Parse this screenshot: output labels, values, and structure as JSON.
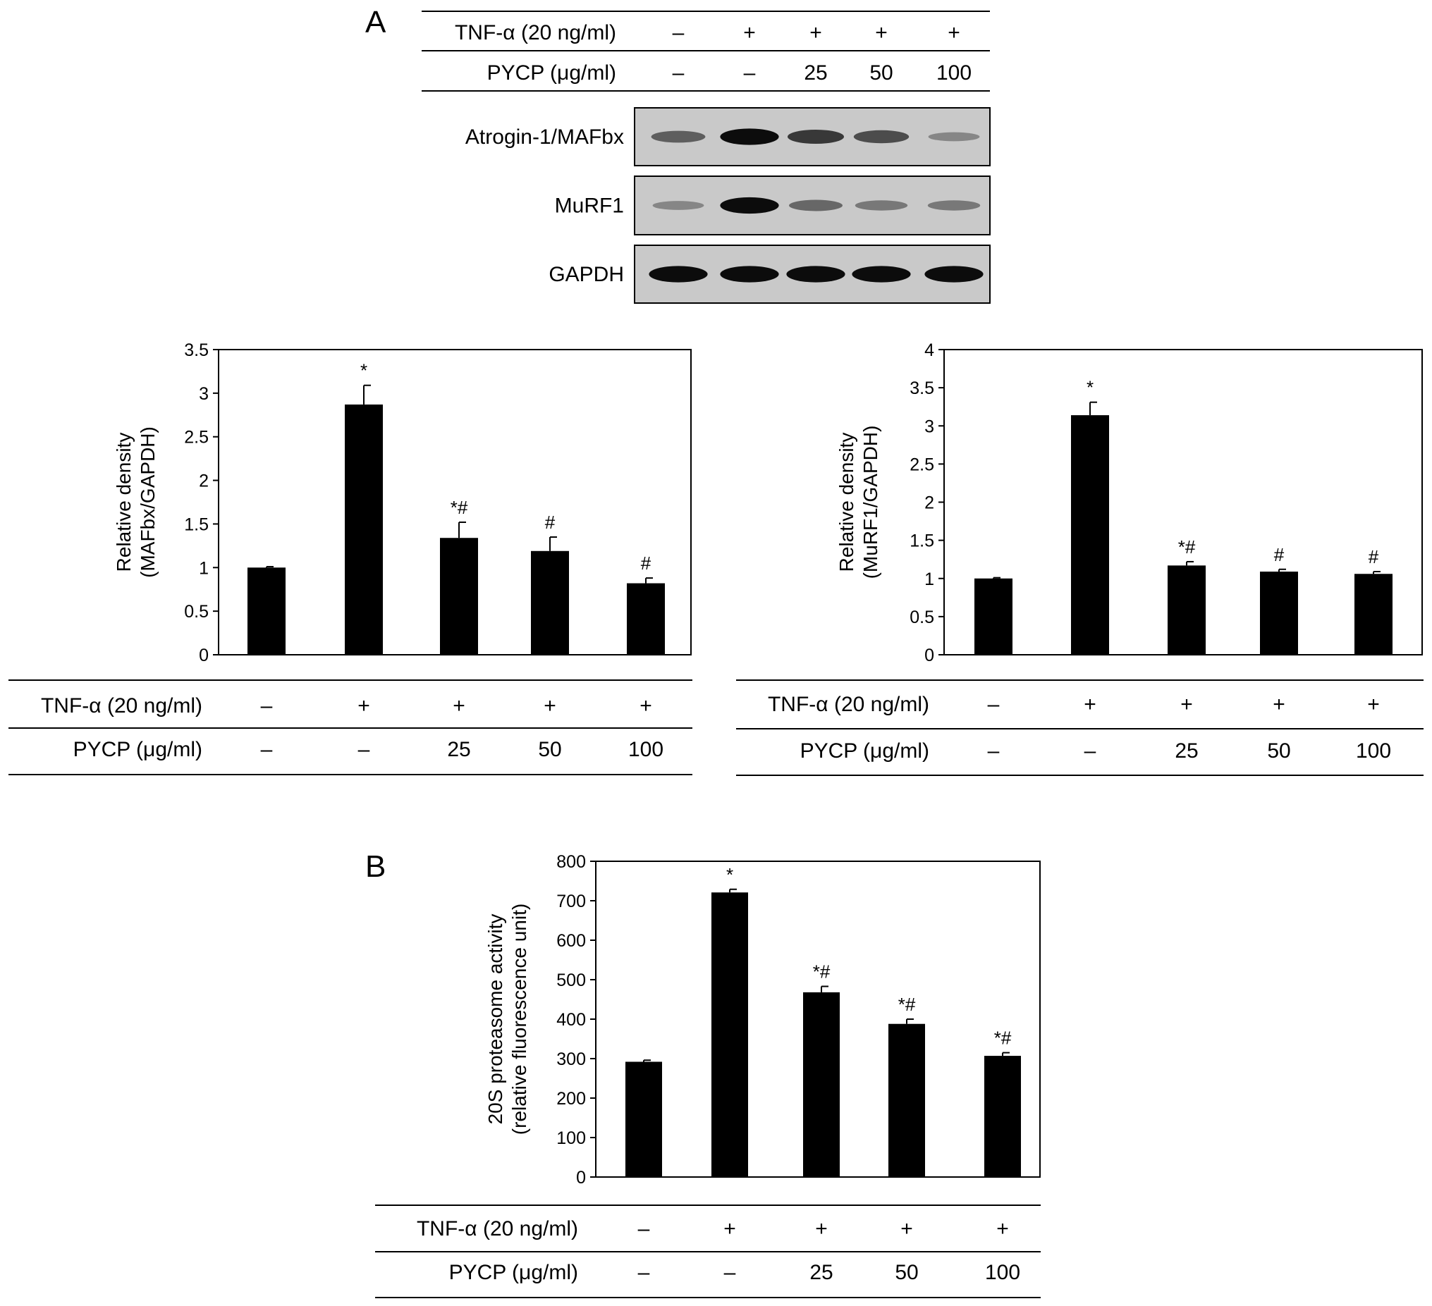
{
  "panel_labels": {
    "a": "A",
    "b": "B"
  },
  "conditions": {
    "tnf_label": "TNF-α (20 ng/ml)",
    "pycp_label": "PYCP (μg/ml)",
    "tnf": [
      "–",
      "+",
      "+",
      "+",
      "+"
    ],
    "pycp": [
      "–",
      "–",
      "25",
      "50",
      "100"
    ]
  },
  "western_blot": {
    "rows": [
      {
        "label": "Atrogin-1/MAFbx",
        "intensity": [
          0.55,
          0.95,
          0.75,
          0.65,
          0.3
        ]
      },
      {
        "label": "MuRF1",
        "intensity": [
          0.3,
          0.95,
          0.5,
          0.4,
          0.4
        ]
      },
      {
        "label": "GAPDH",
        "intensity": [
          0.95,
          0.95,
          0.95,
          0.95,
          0.95
        ]
      }
    ]
  },
  "chart_data": [
    {
      "type": "bar",
      "title": "",
      "xlabel": "",
      "ylabel_lines": [
        "Relative density",
        "(MAFbx/GAPDH)"
      ],
      "ylim": [
        0,
        3.5
      ],
      "yticks": [
        "0",
        "0.5",
        "1",
        "1.5",
        "2",
        "2.5",
        "3",
        "3.5"
      ],
      "values": [
        1.0,
        2.87,
        1.34,
        1.19,
        0.82
      ],
      "errors": [
        0.01,
        0.22,
        0.18,
        0.16,
        0.06
      ],
      "labels": [
        "",
        "*",
        "*#",
        "#",
        "#"
      ]
    },
    {
      "type": "bar",
      "title": "",
      "xlabel": "",
      "ylabel_lines": [
        "Relative density",
        "(MuRF1/GAPDH)"
      ],
      "ylim": [
        0,
        4
      ],
      "yticks": [
        "0",
        "0.5",
        "1",
        "1.5",
        "2",
        "2.5",
        "3",
        "3.5",
        "4"
      ],
      "values": [
        1.0,
        3.14,
        1.17,
        1.09,
        1.06
      ],
      "errors": [
        0.01,
        0.17,
        0.05,
        0.03,
        0.03
      ],
      "labels": [
        "",
        "*",
        "*#",
        "#",
        "#"
      ]
    },
    {
      "type": "bar",
      "title": "",
      "xlabel": "",
      "ylabel_lines": [
        "20S proteasome activity",
        "(relative fluorescence unit)"
      ],
      "ylim": [
        0,
        800
      ],
      "yticks": [
        "0",
        "100",
        "200",
        "300",
        "400",
        "500",
        "600",
        "700",
        "800"
      ],
      "values": [
        292,
        721,
        468,
        388,
        307
      ],
      "errors": [
        4,
        8,
        15,
        12,
        8
      ],
      "labels": [
        "",
        "*",
        "*#",
        "*#",
        "*#"
      ]
    }
  ]
}
